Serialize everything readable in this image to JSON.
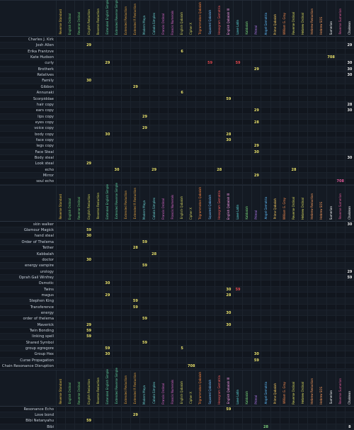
{
  "columns": [
    {
      "name": "Reverse Standard",
      "color": "#f0c94a"
    },
    {
      "name": "English Ordinal",
      "color": "#6fd07a"
    },
    {
      "name": "Reverse Ordinal",
      "color": "#6fd07a"
    },
    {
      "name": "English Reduction",
      "color": "#d2d55a"
    },
    {
      "name": "Reverse Reduction",
      "color": "#d2d55a"
    },
    {
      "name": "Extended English Simple",
      "color": "#5fd0a0"
    },
    {
      "name": "Extended Reverse Simple",
      "color": "#5fd0a0"
    },
    {
      "name": "Extended Reduction",
      "color": "#e0a040"
    },
    {
      "name": "Extended R Reduction",
      "color": "#e0a040"
    },
    {
      "name": "Modern Maya",
      "color": "#6ad0d0"
    },
    {
      "name": "Cabala Simplex",
      "color": "#6ad0d0"
    },
    {
      "name": "Francis Ordinal",
      "color": "#e06ad0"
    },
    {
      "name": "Francis Numerals",
      "color": "#e06ad0"
    },
    {
      "name": "English Qabalah",
      "color": "#d0d060"
    },
    {
      "name": "Cipher X",
      "color": "#d0d060"
    },
    {
      "name": "Trigrammaton Qabalah",
      "color": "#ff8a40"
    },
    {
      "name": "Squared Qabalah",
      "color": "#70c0ff"
    },
    {
      "name": "Hexagram Gematria",
      "color": "#ff6060"
    },
    {
      "name": "English Qabalah III",
      "color": "#ffa0f0"
    },
    {
      "name": "Love Latin",
      "color": "#60e0e0"
    },
    {
      "name": "Kabbalah",
      "color": "#7ee07e"
    },
    {
      "name": "Primal",
      "color": "#c080ff"
    },
    {
      "name": "Angel Gematria",
      "color": "#60c0ff"
    },
    {
      "name": "Prime Qabalah",
      "color": "#ffd060"
    },
    {
      "name": "William G. Gray",
      "color": "#ff9050"
    },
    {
      "name": "Reverse Ordinal",
      "color": "#e0e060"
    },
    {
      "name": "Hebrew Ordinal",
      "color": "#e0e060"
    },
    {
      "name": "Hebrew Reduction",
      "color": "#ffa060"
    },
    {
      "name": "Hebrew SOS",
      "color": "#ffa060"
    },
    {
      "name": "Sumerian",
      "color": "#ffffff"
    },
    {
      "name": "Reverse Sumerian",
      "color": "#e05a9a"
    },
    {
      "name": "Chaldean",
      "color": "#ffffff"
    }
  ],
  "blocks": [
    {
      "rows": [
        {
          "label": "Charles J. Kirk",
          "values": []
        },
        {
          "label": "Josh Allen",
          "values": [
            {
              "c": 3,
              "v": "29"
            },
            {
              "c": 31,
              "v": "29"
            }
          ]
        },
        {
          "label": "Erika Frantzve",
          "values": [
            {
              "c": 13,
              "v": "6"
            }
          ]
        },
        {
          "label": "Kate Hudson",
          "values": [
            {
              "c": 29,
              "v": "708"
            }
          ]
        },
        {
          "label": "curly",
          "values": [
            {
              "c": 5,
              "v": "29"
            },
            {
              "c": 16,
              "v": "59"
            },
            {
              "c": 19,
              "v": "59"
            },
            {
              "c": 31,
              "v": "30"
            }
          ]
        },
        {
          "label": "Brotherk",
          "values": [
            {
              "c": 21,
              "v": "29"
            },
            {
              "c": 31,
              "v": "30"
            }
          ]
        },
        {
          "label": "Relatives",
          "values": [
            {
              "c": 31,
              "v": "30"
            }
          ]
        },
        {
          "label": "Family",
          "values": [
            {
              "c": 3,
              "v": "30"
            }
          ]
        },
        {
          "label": "Gibbon",
          "values": [
            {
              "c": 8,
              "v": "29"
            }
          ]
        },
        {
          "label": "Annunaki",
          "values": [
            {
              "c": 13,
              "v": "6"
            }
          ]
        },
        {
          "label": "Scorpiddae",
          "values": [
            {
              "c": 18,
              "v": "59"
            }
          ]
        },
        {
          "label": "hair copy",
          "values": [
            {
              "c": 31,
              "v": "28"
            }
          ]
        },
        {
          "label": "ears copy",
          "values": [
            {
              "c": 21,
              "v": "29"
            },
            {
              "c": 31,
              "v": "30"
            }
          ]
        },
        {
          "label": "lips copy",
          "values": [
            {
              "c": 9,
              "v": "29"
            }
          ]
        },
        {
          "label": "eyes copy",
          "values": [
            {
              "c": 21,
              "v": "28"
            }
          ]
        },
        {
          "label": "voice copy",
          "values": [
            {
              "c": 9,
              "v": "29"
            }
          ]
        },
        {
          "label": "body copy",
          "values": [
            {
              "c": 5,
              "v": "30"
            },
            {
              "c": 18,
              "v": "28"
            }
          ]
        },
        {
          "label": "face copy",
          "values": [
            {
              "c": 18,
              "v": "30"
            }
          ]
        },
        {
          "label": "legs copy",
          "values": [
            {
              "c": 21,
              "v": "29"
            }
          ]
        },
        {
          "label": "Face Steal",
          "values": [
            {
              "c": 21,
              "v": "30"
            }
          ]
        },
        {
          "label": "Body steal",
          "values": [
            {
              "c": 31,
              "v": "30"
            }
          ]
        },
        {
          "label": "Look steal",
          "values": [
            {
              "c": 3,
              "v": "29"
            }
          ]
        },
        {
          "label": "echo",
          "values": [
            {
              "c": 6,
              "v": "30"
            },
            {
              "c": 10,
              "v": "29"
            },
            {
              "c": 17,
              "v": "28"
            },
            {
              "c": 25,
              "v": "28"
            }
          ]
        },
        {
          "label": "Mirror",
          "values": [
            {
              "c": 21,
              "v": "29"
            }
          ]
        },
        {
          "label": "soul echo",
          "values": [
            {
              "c": 30,
              "v": "708"
            }
          ]
        }
      ]
    },
    {
      "rows": [
        {
          "label": "skin walker",
          "values": [
            {
              "c": 31,
              "v": "30"
            }
          ]
        },
        {
          "label": "Glamour Magick",
          "values": [
            {
              "c": 3,
              "v": "59"
            }
          ]
        },
        {
          "label": "hand steal",
          "values": [
            {
              "c": 3,
              "v": "30"
            }
          ]
        },
        {
          "label": "Order of Thelema",
          "values": [
            {
              "c": 9,
              "v": "59"
            }
          ]
        },
        {
          "label": "Tether",
          "values": [
            {
              "c": 8,
              "v": "28"
            }
          ]
        },
        {
          "label": "Kabbalah",
          "values": [
            {
              "c": 10,
              "v": "28"
            }
          ]
        },
        {
          "label": "doctor",
          "values": [
            {
              "c": 3,
              "v": "30"
            }
          ]
        },
        {
          "label": "energy vampire",
          "values": [
            {
              "c": 9,
              "v": "59"
            }
          ]
        },
        {
          "label": "urology",
          "values": [
            {
              "c": 31,
              "v": "29"
            }
          ]
        },
        {
          "label": "Oprah Gail Winfrey",
          "values": [
            {
              "c": 31,
              "v": "59"
            }
          ]
        },
        {
          "label": "Osmotic",
          "values": [
            {
              "c": 5,
              "v": "30"
            }
          ]
        },
        {
          "label": "Twins",
          "values": [
            {
              "c": 18,
              "v": "30"
            },
            {
              "c": 19,
              "v": "59"
            }
          ]
        },
        {
          "label": "magus",
          "values": [
            {
              "c": 5,
              "v": "29"
            },
            {
              "c": 18,
              "v": "28"
            }
          ]
        },
        {
          "label": "Stephen King",
          "values": [
            {
              "c": 8,
              "v": "59"
            }
          ]
        },
        {
          "label": "Transference",
          "values": [
            {
              "c": 8,
              "v": "59"
            }
          ]
        },
        {
          "label": "energy",
          "values": [
            {
              "c": 18,
              "v": "30"
            }
          ]
        },
        {
          "label": "order of thelema",
          "values": [
            {
              "c": 9,
              "v": "59"
            }
          ]
        },
        {
          "label": "Maverick",
          "values": [
            {
              "c": 3,
              "v": "29"
            },
            {
              "c": 18,
              "v": "30"
            }
          ]
        },
        {
          "label": "Twin Bonding",
          "values": [
            {
              "c": 3,
              "v": "59"
            }
          ]
        },
        {
          "label": "linking spell",
          "values": [
            {
              "c": 3,
              "v": "59"
            }
          ]
        },
        {
          "label": "Shared Symbol",
          "values": [
            {
              "c": 9,
              "v": "59"
            }
          ]
        },
        {
          "label": "group egregore",
          "values": [
            {
              "c": 5,
              "v": "59"
            },
            {
              "c": 13,
              "v": "5"
            }
          ]
        },
        {
          "label": "Group Hex",
          "values": [
            {
              "c": 5,
              "v": "30"
            },
            {
              "c": 21,
              "v": "30"
            }
          ]
        },
        {
          "label": "Curse Propagation",
          "values": [
            {
              "c": 21,
              "v": "59"
            }
          ]
        },
        {
          "label": "Chain Resonance Disruption",
          "values": [
            {
              "c": 14,
              "v": "708"
            }
          ]
        }
      ]
    },
    {
      "rows": [
        {
          "label": "Resonance Echo",
          "values": [
            {
              "c": 18,
              "v": "59"
            }
          ]
        },
        {
          "label": "Love bond",
          "values": [
            {
              "c": 8,
              "v": "29"
            }
          ]
        },
        {
          "label": "Bibi Netanyahu",
          "values": [
            {
              "c": 3,
              "v": "59"
            }
          ]
        },
        {
          "label": "Bibi",
          "values": [
            {
              "c": 22,
              "v": "28"
            },
            {
              "c": 31,
              "v": "8"
            }
          ]
        }
      ]
    }
  ]
}
